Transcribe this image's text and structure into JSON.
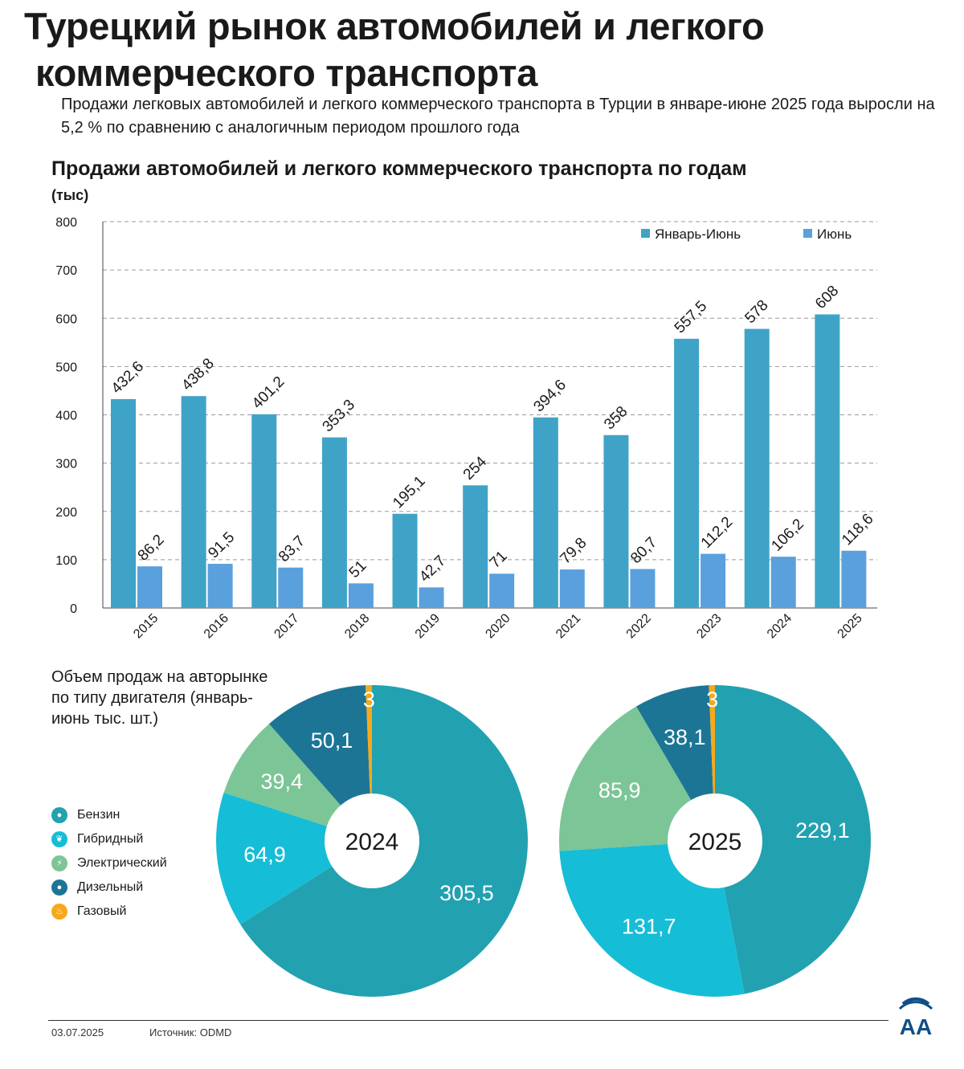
{
  "header": {
    "title_line1": "Турецкий рынок автомобилей и легкого",
    "title_line2": "коммерческого транспорта",
    "subtitle": "Продажи легковых автомобилей и легкого коммерческого транспорта в Турции в январе-июне 2025 года выросли на 5,2 % по сравнению с аналогичным периодом прошлого года"
  },
  "chart_data": [
    {
      "type": "bar",
      "title": "Продажи автомобилей и легкого коммерческого транспорта по годам",
      "ylabel": "(тыс)",
      "categories": [
        "2015",
        "2016",
        "2017",
        "2018",
        "2019",
        "2020",
        "2021",
        "2022",
        "2023",
        "2024",
        "2025"
      ],
      "series": [
        {
          "name": "Январь-Июнь",
          "color": "#3fa3c7",
          "values": [
            432.6,
            438.8,
            401.2,
            353.3,
            195.1,
            254,
            394.6,
            358,
            557.5,
            578,
            608
          ],
          "labels": [
            "432,6",
            "438,8",
            "401,2",
            "353,3",
            "195,1",
            "254",
            "394,6",
            "358",
            "557,5",
            "578",
            "608"
          ]
        },
        {
          "name": "Июнь",
          "color": "#5aa0dc",
          "values": [
            86.2,
            91.5,
            83.7,
            51,
            42.7,
            71,
            79.8,
            80.7,
            112.2,
            106.2,
            118.6
          ],
          "labels": [
            "86,2",
            "91,5",
            "83,7",
            "51",
            "42,7",
            "71",
            "79,8",
            "80,7",
            "112,2",
            "106,2",
            "118,6"
          ]
        }
      ],
      "ylim": [
        0,
        800
      ],
      "yticks": [
        0,
        100,
        200,
        300,
        400,
        500,
        600,
        700,
        800
      ],
      "grid": true,
      "legend": "top-right"
    },
    {
      "type": "pie",
      "center_label": "2024",
      "slices": [
        {
          "name": "Бензин",
          "value": 305.5,
          "label": "305,5"
        },
        {
          "name": "Гибридный",
          "value": 64.9,
          "label": "64,9"
        },
        {
          "name": "Электрический",
          "value": 39.4,
          "label": "39,4"
        },
        {
          "name": "Дизельный",
          "value": 50.1,
          "label": "50,1"
        },
        {
          "name": "Газовый",
          "value": 3,
          "label": "3"
        }
      ]
    },
    {
      "type": "pie",
      "center_label": "2025",
      "slices": [
        {
          "name": "Бензин",
          "value": 229.1,
          "label": "229,1"
        },
        {
          "name": "Гибридный",
          "value": 131.7,
          "label": "131,7"
        },
        {
          "name": "Электрический",
          "value": 85.9,
          "label": "85,9"
        },
        {
          "name": "Дизельный",
          "value": 38.1,
          "label": "38,1"
        },
        {
          "name": "Газовый",
          "value": 3,
          "label": "3"
        }
      ]
    }
  ],
  "engine_section": {
    "caption": "Объем продаж на авторынке по типу двигателя (январь-июнь тыс. шт.)",
    "legend": [
      {
        "name": "Бензин",
        "color": "#22a1b1",
        "icon": "fuel-drop-icon",
        "glyph": "●"
      },
      {
        "name": "Гибридный",
        "color": "#16bdd6",
        "icon": "hybrid-leaf-icon",
        "glyph": "❦"
      },
      {
        "name": "Электрический",
        "color": "#7cc596",
        "icon": "lightning-icon",
        "glyph": "⚡"
      },
      {
        "name": "Дизельный",
        "color": "#1c7595",
        "icon": "diesel-drop-icon",
        "glyph": "●"
      },
      {
        "name": "Газовый",
        "color": "#f7a81b",
        "icon": "flame-icon",
        "glyph": "♨"
      }
    ]
  },
  "footer": {
    "date": "03.07.2025",
    "source": "Источник: ODMD",
    "logo_text": "AA"
  }
}
